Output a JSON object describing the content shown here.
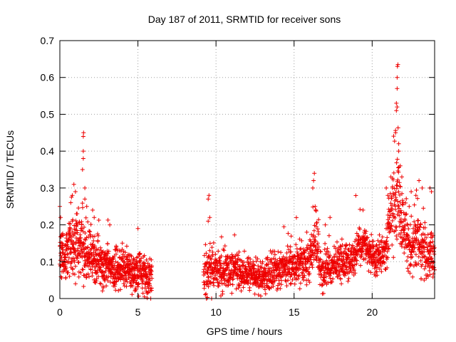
{
  "chart_data": {
    "type": "scatter",
    "title": "Day 187 of 2011, SRMTID for receiver sons",
    "xlabel": "GPS time / hours",
    "ylabel": "SRMTID / TECUs",
    "xlim": [
      0,
      24
    ],
    "ylim": [
      0,
      0.7
    ],
    "xticks": [
      0,
      5,
      10,
      15,
      20
    ],
    "xtick_labels": [
      "0",
      "5",
      "10",
      "15",
      "20"
    ],
    "yticks": [
      0,
      0.1,
      0.2,
      0.3,
      0.4,
      0.5,
      0.6,
      0.7
    ],
    "ytick_labels": [
      "0",
      "0.1",
      "0.2",
      "0.3",
      "0.4",
      "0.5",
      "0.6",
      "0.7"
    ],
    "grid": true,
    "marker": "+",
    "color": "#ee0000",
    "seed": 187,
    "segments": [
      {
        "x0": 0.0,
        "x1": 5.9,
        "count": 800
      },
      {
        "x0": 9.2,
        "x1": 24.0,
        "count": 1750
      }
    ],
    "envelope": [
      [
        0.0,
        0.11,
        0.045
      ],
      [
        0.3,
        0.11,
        0.04
      ],
      [
        0.8,
        0.15,
        0.06
      ],
      [
        1.2,
        0.14,
        0.06
      ],
      [
        1.5,
        0.14,
        0.07
      ],
      [
        2.0,
        0.12,
        0.05
      ],
      [
        2.5,
        0.1,
        0.045
      ],
      [
        3.0,
        0.09,
        0.04
      ],
      [
        4.0,
        0.08,
        0.035
      ],
      [
        5.0,
        0.07,
        0.035
      ],
      [
        5.9,
        0.06,
        0.035
      ],
      [
        9.2,
        0.07,
        0.05
      ],
      [
        9.6,
        0.08,
        0.05
      ],
      [
        10.0,
        0.07,
        0.04
      ],
      [
        11.0,
        0.08,
        0.035
      ],
      [
        12.0,
        0.07,
        0.03
      ],
      [
        13.0,
        0.06,
        0.03
      ],
      [
        14.0,
        0.08,
        0.035
      ],
      [
        15.0,
        0.09,
        0.035
      ],
      [
        16.0,
        0.1,
        0.045
      ],
      [
        16.4,
        0.15,
        0.06
      ],
      [
        16.8,
        0.06,
        0.035
      ],
      [
        17.5,
        0.09,
        0.035
      ],
      [
        18.5,
        0.1,
        0.035
      ],
      [
        19.5,
        0.15,
        0.035
      ],
      [
        20.0,
        0.11,
        0.035
      ],
      [
        20.8,
        0.12,
        0.035
      ],
      [
        21.2,
        0.22,
        0.06
      ],
      [
        21.6,
        0.3,
        0.1
      ],
      [
        22.0,
        0.18,
        0.05
      ],
      [
        22.5,
        0.14,
        0.05
      ],
      [
        23.0,
        0.15,
        0.06
      ],
      [
        23.5,
        0.12,
        0.05
      ],
      [
        24.0,
        0.11,
        0.05
      ]
    ],
    "spikes": [
      [
        0.0,
        0.25
      ],
      [
        0.05,
        0.22
      ],
      [
        0.7,
        0.26
      ],
      [
        0.8,
        0.28
      ],
      [
        0.9,
        0.31
      ],
      [
        1.0,
        0.29
      ],
      [
        1.45,
        0.35
      ],
      [
        1.5,
        0.38
      ],
      [
        1.5,
        0.4
      ],
      [
        1.5,
        0.44
      ],
      [
        1.52,
        0.45
      ],
      [
        1.6,
        0.3
      ],
      [
        1.6,
        0.27
      ],
      [
        2.1,
        0.24
      ],
      [
        2.2,
        0.22
      ],
      [
        3.2,
        0.2
      ],
      [
        5.0,
        0.19
      ],
      [
        9.5,
        0.21
      ],
      [
        9.5,
        0.27
      ],
      [
        9.55,
        0.28
      ],
      [
        9.6,
        0.22
      ],
      [
        16.2,
        0.3
      ],
      [
        16.25,
        0.32
      ],
      [
        16.3,
        0.34
      ],
      [
        16.35,
        0.25
      ],
      [
        16.4,
        0.24
      ],
      [
        17.0,
        0.2
      ],
      [
        17.3,
        0.22
      ],
      [
        20.9,
        0.3
      ],
      [
        21.0,
        0.28
      ],
      [
        21.2,
        0.33
      ],
      [
        21.3,
        0.3
      ],
      [
        21.5,
        0.45
      ],
      [
        21.55,
        0.51
      ],
      [
        21.55,
        0.53
      ],
      [
        21.6,
        0.52
      ],
      [
        21.6,
        0.57
      ],
      [
        21.6,
        0.6
      ],
      [
        21.62,
        0.63
      ],
      [
        21.65,
        0.635
      ],
      [
        21.7,
        0.42
      ],
      [
        21.7,
        0.4
      ],
      [
        21.8,
        0.36
      ],
      [
        21.9,
        0.33
      ],
      [
        22.5,
        0.29
      ],
      [
        22.8,
        0.28
      ],
      [
        23.0,
        0.32
      ],
      [
        23.2,
        0.3
      ],
      [
        23.7,
        0.3
      ],
      [
        23.8,
        0.29
      ]
    ]
  }
}
